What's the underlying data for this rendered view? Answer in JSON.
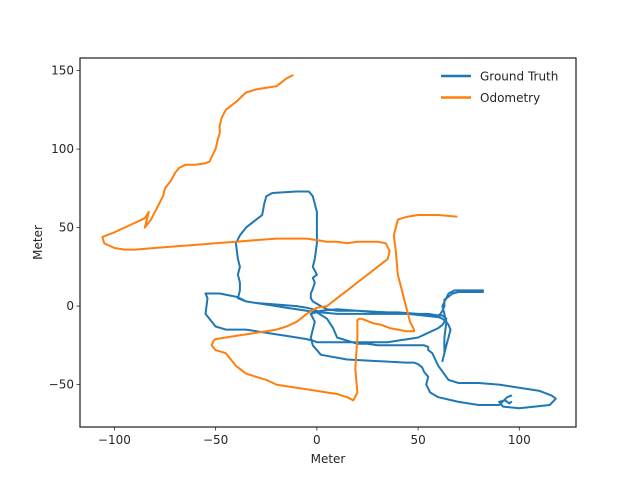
{
  "chart_data": {
    "type": "line",
    "title": "",
    "xlabel": "Meter",
    "ylabel": "Meter",
    "xlim": [
      -117,
      128
    ],
    "ylim": [
      -77,
      158
    ],
    "xticks": [
      -100,
      -50,
      0,
      50,
      100
    ],
    "yticks": [
      -50,
      0,
      50,
      100,
      150
    ],
    "xtick_labels": [
      "−100",
      "−50",
      "0",
      "50",
      "100"
    ],
    "ytick_labels": [
      "−50",
      "0",
      "50",
      "100",
      "150"
    ],
    "grid": false,
    "legend_position": "top-right",
    "series": [
      {
        "name": "Ground Truth",
        "color": "#1f77b4",
        "x": [
          96,
          94,
          90,
          80,
          70,
          60,
          56,
          54,
          55,
          53,
          52,
          50,
          48,
          44,
          30,
          15,
          2,
          -2,
          -3,
          -2,
          -1,
          -3,
          2,
          10,
          20,
          35,
          45,
          60,
          62,
          63,
          64,
          65,
          66,
          65,
          64,
          63,
          62,
          63,
          63,
          64,
          62,
          65,
          68,
          75,
          82,
          82,
          76,
          70,
          67,
          65,
          63,
          63,
          62,
          61,
          61,
          60,
          55,
          50,
          40,
          30,
          20,
          10,
          5,
          2,
          -2,
          -3,
          -3,
          -2,
          -1,
          -2,
          0,
          -2,
          -1,
          0,
          0,
          -2,
          -4,
          -6,
          -10,
          -22,
          -25,
          -26,
          -27,
          -30,
          -35,
          -38,
          -40,
          -39,
          -38,
          -39,
          -38,
          -38,
          -39,
          -35,
          -30,
          -20,
          -10,
          -5,
          -2,
          2,
          10,
          20,
          30,
          40,
          45,
          50,
          55,
          60,
          62,
          63,
          64,
          63,
          62,
          60,
          55,
          50,
          45,
          40,
          35,
          30,
          25,
          20,
          15,
          10,
          5,
          0,
          -2,
          -5,
          -10,
          -15,
          -20,
          -25,
          -30,
          -35,
          -40,
          -42,
          -45,
          -50,
          -55,
          -54,
          -55,
          -52,
          -48,
          -44,
          -40,
          -38,
          -35,
          -30,
          -25,
          -20,
          -15,
          -10,
          -5,
          0,
          5,
          8,
          10,
          20,
          25,
          30,
          40,
          45,
          50,
          53,
          55,
          55,
          57,
          60,
          65,
          70,
          80,
          90,
          100,
          110,
          116,
          118,
          115,
          100,
          92,
          90,
          93,
          95,
          96
        ],
        "y": [
          -57,
          -58,
          -63,
          -63,
          -61,
          -58,
          -55,
          -50,
          -45,
          -42,
          -39,
          -37,
          -36,
          -36,
          -35,
          -34,
          -31,
          -25,
          -20,
          -15,
          -10,
          -5,
          -3,
          -2,
          -3,
          -4,
          -5,
          -7,
          -8,
          -9,
          -10,
          -12,
          -15,
          -20,
          -25,
          -30,
          -35,
          -30,
          -20,
          -10,
          0,
          8,
          10,
          10,
          10,
          9,
          9,
          9,
          8,
          6,
          4,
          0,
          -3,
          -5,
          -5,
          -6,
          -6,
          -5,
          -4,
          -4,
          -3,
          -3,
          -2,
          0,
          3,
          5,
          8,
          11,
          15,
          18,
          20,
          25,
          30,
          40,
          60,
          70,
          73,
          73,
          73,
          72,
          70,
          65,
          58,
          55,
          50,
          45,
          40,
          30,
          25,
          20,
          15,
          10,
          5,
          3,
          2,
          1,
          0,
          -1,
          -2,
          -4,
          -5,
          -5,
          -5,
          -5,
          -5,
          -5,
          -5,
          -6,
          -6,
          -7,
          -8,
          -10,
          -12,
          -14,
          -17,
          -20,
          -21,
          -22,
          -23,
          -23,
          -23,
          -23,
          -23,
          -23,
          -23,
          -23,
          -22,
          -21,
          -20,
          -19,
          -18,
          -17,
          -16,
          -15,
          -15,
          -15,
          -15,
          -13,
          -5,
          5,
          8,
          8,
          8,
          7,
          6,
          5,
          3,
          2,
          1,
          0,
          -1,
          -2,
          -3,
          -4,
          -8,
          -14,
          -20,
          -24,
          -24,
          -25,
          -25,
          -25,
          -25,
          -25,
          -26,
          -28,
          -30,
          -38,
          -47,
          -49,
          -49,
          -50,
          -52,
          -54,
          -57,
          -59,
          -63,
          -65,
          -64,
          -61,
          -60,
          -62,
          -61
        ]
      },
      {
        "name": "Odometry",
        "color": "#ff7f0e",
        "x": [
          69,
          60,
          50,
          45,
          42,
          40,
          39,
          38,
          39,
          40,
          42,
          43,
          44,
          45,
          46,
          48,
          48,
          47,
          44,
          40,
          36,
          32,
          28,
          26,
          24,
          22,
          21,
          20,
          20,
          19,
          20,
          18,
          15,
          10,
          5,
          0,
          -5,
          -10,
          -15,
          -20,
          -25,
          -30,
          -35,
          -40,
          -45,
          -50,
          -52,
          -51,
          -50,
          -45,
          -40,
          -35,
          -30,
          -25,
          -20,
          -15,
          -10,
          -5,
          0,
          5,
          10,
          15,
          20,
          25,
          30,
          35,
          36,
          34,
          30,
          25,
          20,
          15,
          10,
          5,
          0,
          -5,
          -10,
          -20,
          -30,
          -40,
          -50,
          -60,
          -70,
          -80,
          -90,
          -95,
          -100,
          -105,
          -106,
          -100,
          -95,
          -90,
          -85,
          -84,
          -83,
          -84,
          -85,
          -82,
          -80,
          -78,
          -76,
          -75,
          -72,
          -70,
          -68,
          -65,
          -60,
          -55,
          -53,
          -52,
          -50,
          -49,
          -48,
          -48,
          -47,
          -45,
          -40,
          -35,
          -30,
          -25,
          -20,
          -15,
          -12
        ],
        "y": [
          57,
          58,
          58,
          57,
          56,
          55,
          50,
          45,
          35,
          20,
          10,
          5,
          0,
          -5,
          -10,
          -15,
          -16,
          -16,
          -16,
          -15,
          -14,
          -12,
          -11,
          -10,
          -9,
          -8,
          -8,
          -9,
          -20,
          -40,
          -55,
          -60,
          -58,
          -56,
          -55,
          -54,
          -53,
          -52,
          -51,
          -50,
          -47,
          -45,
          -43,
          -38,
          -30,
          -28,
          -25,
          -22,
          -21,
          -20,
          -19,
          -18,
          -17,
          -16,
          -15,
          -13,
          -10,
          -5,
          -1,
          0,
          5,
          10,
          15,
          20,
          25,
          30,
          35,
          40,
          41,
          41,
          41,
          40,
          41,
          41,
          42,
          43,
          43,
          43,
          42,
          41,
          40,
          39,
          38,
          37,
          36,
          36,
          37,
          40,
          44,
          47,
          50,
          53,
          56,
          58,
          60,
          55,
          50,
          55,
          60,
          65,
          70,
          75,
          80,
          85,
          88,
          90,
          90,
          91,
          92,
          95,
          100,
          106,
          110,
          115,
          120,
          125,
          130,
          136,
          138,
          139,
          140,
          145,
          147
        ]
      }
    ]
  }
}
